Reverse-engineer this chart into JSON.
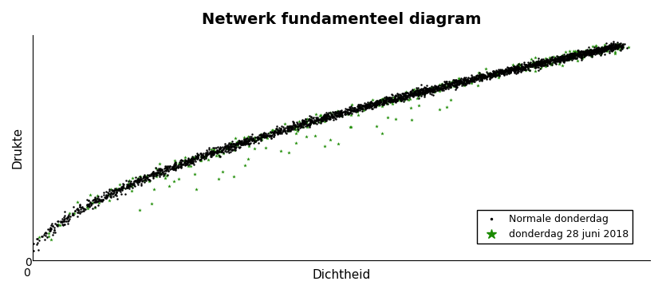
{
  "title": "Netwerk fundamenteel diagram",
  "xlabel": "Dichtheid",
  "ylabel": "Drukte",
  "title_fontsize": 14,
  "label_fontsize": 11,
  "legend_entries": [
    "Normale donderdag",
    "donderdag 28 juni 2018"
  ],
  "black_color": "#000000",
  "green_color": "#1a8a00",
  "background_color": "#ffffff",
  "x_zero_label": "0",
  "y_zero_label": "0",
  "xlim": [
    0,
    1.05
  ],
  "ylim": [
    -0.02,
    1.05
  ],
  "curve_power": 0.6,
  "n_black": 3000,
  "n_green_band": 400,
  "n_green_scattered": 35
}
